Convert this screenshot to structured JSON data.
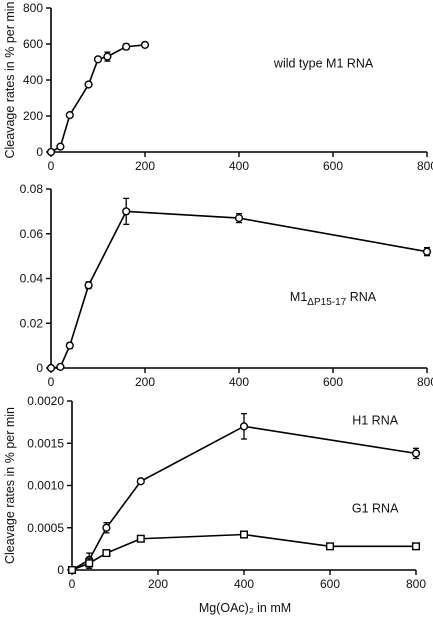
{
  "x_axis_title": "Mg(OAc)₂ in mM",
  "chart_data": [
    {
      "type": "line",
      "title": "",
      "xlabel": "",
      "ylabel": "Cleavage rates in % per min",
      "xlim": [
        0,
        800
      ],
      "ylim": [
        0,
        800
      ],
      "x_ticks": [
        "0",
        "200",
        "400",
        "600",
        "800"
      ],
      "y_ticks": [
        "0",
        "200",
        "400",
        "600",
        "800"
      ],
      "series": [
        {
          "name": "wild type M1 RNA",
          "marker": "circle",
          "x": [
            0,
            20,
            40,
            80,
            100,
            120,
            160,
            200
          ],
          "y": [
            0,
            30,
            205,
            375,
            515,
            530,
            585,
            595
          ],
          "err": [
            0,
            5,
            8,
            10,
            10,
            25,
            15,
            8
          ]
        }
      ],
      "annotations": [
        {
          "text": "wild type M1 RNA",
          "at_x": 580,
          "at_y": 470
        }
      ]
    },
    {
      "type": "line",
      "title": "",
      "xlabel": "",
      "ylabel": "",
      "xlim": [
        0,
        800
      ],
      "ylim": [
        0,
        0.08
      ],
      "x_ticks": [
        "0",
        "200",
        "400",
        "600",
        "800"
      ],
      "y_ticks": [
        "0",
        "0.02",
        "0.04",
        "0.06",
        "0.08"
      ],
      "series": [
        {
          "name": "M1ΔP15-17 RNA",
          "marker": "circle",
          "x": [
            0,
            20,
            40,
            80,
            160,
            400,
            800
          ],
          "y": [
            0,
            0.0005,
            0.01,
            0.037,
            0.07,
            0.067,
            0.052
          ],
          "err": [
            0,
            0.0003,
            0.0012,
            0.0015,
            0.0058,
            0.002,
            0.0018
          ]
        }
      ],
      "annotations": [
        {
          "text": "M1",
          "subscript": "ΔP15-17",
          "suffix": " RNA",
          "at_x": 600,
          "at_y": 0.03
        }
      ]
    },
    {
      "type": "line",
      "title": "",
      "xlabel": "Mg(OAc)₂ in mM",
      "ylabel": "Cleavage rates in % per min",
      "xlim": [
        0,
        800
      ],
      "ylim": [
        0,
        0.002
      ],
      "x_ticks": [
        "0",
        "200",
        "400",
        "600",
        "800"
      ],
      "y_ticks": [
        "0",
        "0.0005",
        "0.0010",
        "0.0015",
        "0.0020"
      ],
      "series": [
        {
          "name": "H1 RNA",
          "marker": "circle",
          "x": [
            0,
            40,
            80,
            160,
            400,
            800
          ],
          "y": [
            0,
            0.00012,
            0.0005,
            0.00105,
            0.0017,
            0.00138
          ],
          "err": [
            0,
            8e-05,
            6e-05,
            2e-05,
            0.00015,
            6e-05
          ]
        },
        {
          "name": "G1 RNA",
          "marker": "square",
          "x": [
            0,
            40,
            80,
            160,
            400,
            600,
            800
          ],
          "y": [
            0,
            8e-05,
            0.0002,
            0.00037,
            0.00042,
            0.00028,
            0.00028
          ],
          "err": [
            0,
            6e-05,
            2e-05,
            3e-05,
            3e-05,
            2e-05,
            2e-05
          ]
        }
      ],
      "annotations": [
        {
          "text": "H1 RNA",
          "at_x": 705,
          "at_y": 0.00172
        },
        {
          "text": "G1 RNA",
          "at_x": 705,
          "at_y": 0.00068
        }
      ]
    }
  ]
}
